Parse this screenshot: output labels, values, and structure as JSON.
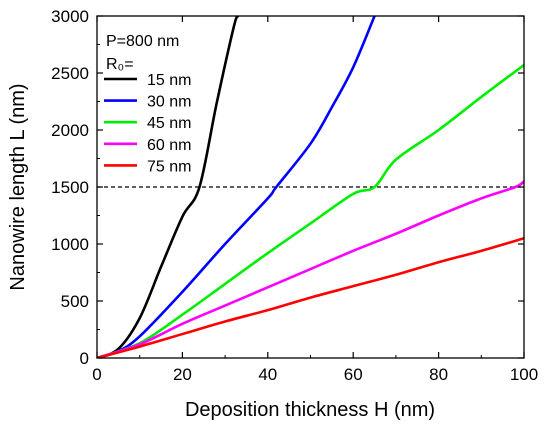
{
  "chart_data": {
    "type": "line",
    "xlabel": "Deposition thickness H (nm)",
    "ylabel": "Nanowire length L (nm)",
    "xlim": [
      0,
      100
    ],
    "ylim": [
      0,
      3000
    ],
    "x_ticks": [
      0,
      20,
      40,
      60,
      80,
      100
    ],
    "y_ticks": [
      0,
      500,
      1000,
      1500,
      2000,
      2500,
      3000
    ],
    "grid": false,
    "legend_placement": "top-left",
    "legend_header": [
      "P=800 nm",
      "R₀="
    ],
    "reference_line": {
      "y": 1500,
      "style": "dashed",
      "color": "#000000"
    },
    "series": [
      {
        "name": "15 nm",
        "color": "#000000",
        "x": [
          0,
          5,
          10,
          15,
          20,
          24,
          28,
          32,
          33
        ],
        "y": [
          0,
          80,
          350,
          800,
          1240,
          1500,
          2230,
          2900,
          3000
        ]
      },
      {
        "name": "30 nm",
        "color": "#0000ff",
        "x": [
          0,
          5,
          10,
          20,
          30,
          40,
          42,
          50,
          55,
          60,
          65
        ],
        "y": [
          0,
          60,
          190,
          580,
          1000,
          1400,
          1500,
          1880,
          2200,
          2550,
          3000
        ]
      },
      {
        "name": "45 nm",
        "color": "#00ee00",
        "x": [
          0,
          10,
          20,
          30,
          40,
          50,
          60,
          65,
          70,
          80,
          90,
          100
        ],
        "y": [
          0,
          130,
          380,
          650,
          920,
          1180,
          1440,
          1500,
          1740,
          2000,
          2290,
          2570
        ]
      },
      {
        "name": "60 nm",
        "color": "#ff00ff",
        "x": [
          0,
          10,
          20,
          30,
          40,
          50,
          60,
          70,
          80,
          90,
          98,
          100
        ],
        "y": [
          0,
          120,
          300,
          460,
          620,
          780,
          940,
          1090,
          1250,
          1400,
          1500,
          1550
        ]
      },
      {
        "name": "75 nm",
        "color": "#ff0000",
        "x": [
          0,
          10,
          20,
          30,
          40,
          50,
          60,
          70,
          80,
          90,
          100
        ],
        "y": [
          0,
          100,
          210,
          320,
          420,
          530,
          630,
          730,
          840,
          940,
          1050
        ]
      }
    ]
  }
}
